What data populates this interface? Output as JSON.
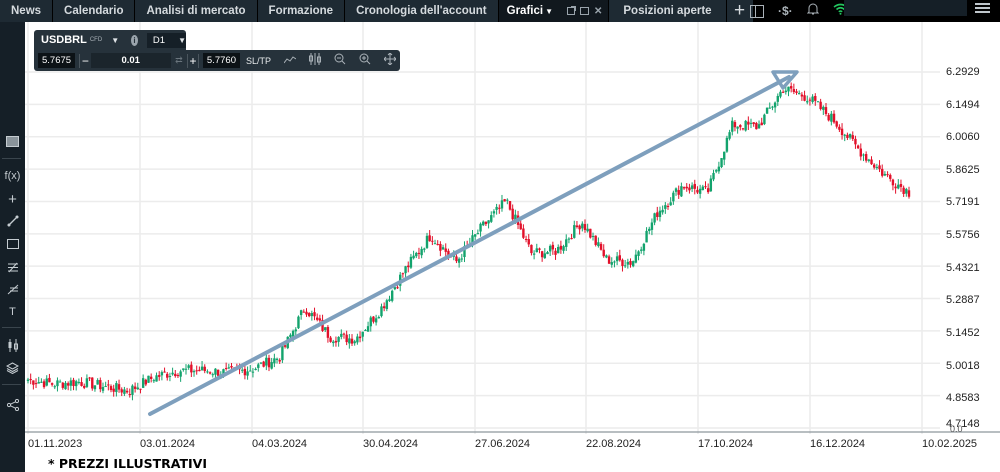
{
  "topbar": {
    "tabs": [
      {
        "label": "News"
      },
      {
        "label": "Calendario"
      },
      {
        "label": "Analisi di mercato"
      },
      {
        "label": "Formazione"
      },
      {
        "label": "Cronologia dell'account"
      },
      {
        "label": "Grafici",
        "active": true
      },
      {
        "label": "Posizioni aperte"
      }
    ],
    "add_tab": "+",
    "icons": [
      "layout-panel-icon",
      "dollar-signal-icon",
      "bell-icon",
      "wifi-icon",
      "menu-icon"
    ],
    "wifi_color": "#22c55e"
  },
  "left_toolbar": {
    "items": [
      "chart-type-icon",
      "function-icon",
      "crosshair-icon",
      "trendline-icon",
      "rectangle-icon",
      "fibonacci-icon",
      "pitchfork-icon",
      "text-icon",
      "indicators-icon",
      "layers-icon",
      "share-icon"
    ],
    "fx_label": "f(x)",
    "text_label": "T"
  },
  "instrument": {
    "symbol": "USDBRL",
    "type": "CFD",
    "timeframe": "D1",
    "sell_price": "5.7675",
    "quantity": "0.01",
    "buy_price": "5.7760",
    "minus": "−",
    "plus": "+",
    "sltp": "SL/TP"
  },
  "footnote": "* PREZZI ILLUSTRATIVI",
  "colors": {
    "up": "#13a36d",
    "down": "#e2102a",
    "trend_arrow": "#7e9fbd",
    "grid": "#ececec"
  },
  "chart_data": {
    "type": "candlestick",
    "title": "USDBRL CFD D1",
    "xlabel": "",
    "ylabel": "",
    "x_ticks": [
      "01.11.2023",
      "03.01.2024",
      "04.03.2024",
      "30.04.2024",
      "27.06.2024",
      "22.08.2024",
      "17.10.2024",
      "16.12.2024",
      "10.02.2025"
    ],
    "y_ticks": [
      "6.2929",
      "6.1494",
      "6.0060",
      "5.8625",
      "5.7191",
      "5.5756",
      "5.4321",
      "5.2887",
      "5.1452",
      "5.0018",
      "4.8583",
      "4.7148"
    ],
    "y_extra_label": "0.0",
    "ylim": [
      4.7148,
      6.2929
    ],
    "grid": true,
    "annotation": "upward trend arrow from ~03.01.2024 (4.87) to ~16.12.2024 (6.28)",
    "approx_closes": [
      {
        "date": "01.11.2023",
        "close": 4.93
      },
      {
        "date": "15.11.2023",
        "close": 4.91
      },
      {
        "date": "01.12.2023",
        "close": 4.92
      },
      {
        "date": "15.12.2023",
        "close": 4.9
      },
      {
        "date": "03.01.2024",
        "close": 4.88
      },
      {
        "date": "20.01.2024",
        "close": 4.94
      },
      {
        "date": "04.02.2024",
        "close": 4.97
      },
      {
        "date": "20.02.2024",
        "close": 4.97
      },
      {
        "date": "04.03.2024",
        "close": 4.96
      },
      {
        "date": "20.03.2024",
        "close": 4.98
      },
      {
        "date": "05.04.2024",
        "close": 5.03
      },
      {
        "date": "15.04.2024",
        "close": 5.25
      },
      {
        "date": "30.04.2024",
        "close": 5.12
      },
      {
        "date": "15.05.2024",
        "close": 5.11
      },
      {
        "date": "01.06.2024",
        "close": 5.24
      },
      {
        "date": "15.06.2024",
        "close": 5.42
      },
      {
        "date": "27.06.2024",
        "close": 5.57
      },
      {
        "date": "05.07.2024",
        "close": 5.45
      },
      {
        "date": "20.07.2024",
        "close": 5.6
      },
      {
        "date": "01.08.2024",
        "close": 5.72
      },
      {
        "date": "10.08.2024",
        "close": 5.49
      },
      {
        "date": "22.08.2024",
        "close": 5.5
      },
      {
        "date": "05.09.2024",
        "close": 5.63
      },
      {
        "date": "20.09.2024",
        "close": 5.46
      },
      {
        "date": "01.10.2024",
        "close": 5.45
      },
      {
        "date": "17.10.2024",
        "close": 5.67
      },
      {
        "date": "01.11.2024",
        "close": 5.79
      },
      {
        "date": "15.11.2024",
        "close": 5.76
      },
      {
        "date": "25.11.2024",
        "close": 6.06
      },
      {
        "date": "05.12.2024",
        "close": 6.05
      },
      {
        "date": "16.12.2024",
        "close": 6.22
      },
      {
        "date": "25.12.2024",
        "close": 6.18
      },
      {
        "date": "05.01.2025",
        "close": 6.08
      },
      {
        "date": "15.01.2025",
        "close": 5.95
      },
      {
        "date": "25.01.2025",
        "close": 5.84
      },
      {
        "date": "01.02.2025",
        "close": 5.76
      }
    ],
    "last_close": 5.76
  }
}
